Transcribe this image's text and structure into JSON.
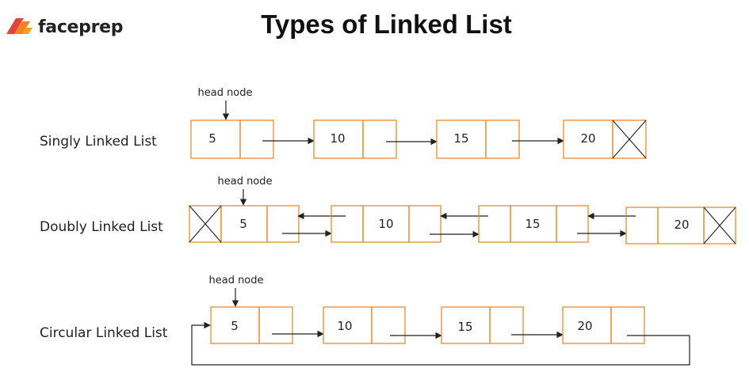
{
  "brand": {
    "name": "faceprep",
    "accent": "#F58320",
    "accent_secondary": "#E2463A"
  },
  "title": "Types of Linked List",
  "colors": {
    "node_border": "#E88B2E",
    "line": "#222222"
  },
  "head_label": "head node",
  "lists": {
    "singly": {
      "label": "Singly Linked List",
      "nodes": [
        {
          "value": "5"
        },
        {
          "value": "10"
        },
        {
          "value": "15"
        },
        {
          "value": "20"
        }
      ],
      "terminator": "null-cross"
    },
    "doubly": {
      "label": "Doubly Linked List",
      "nodes": [
        {
          "value": "5"
        },
        {
          "value": "10"
        },
        {
          "value": "15"
        },
        {
          "value": "20"
        }
      ],
      "terminator": "null-cross"
    },
    "circular": {
      "label": "Circular Linked List",
      "nodes": [
        {
          "value": "5"
        },
        {
          "value": "10"
        },
        {
          "value": "15"
        },
        {
          "value": "20"
        }
      ],
      "terminator": "loop-back-to-head"
    }
  }
}
